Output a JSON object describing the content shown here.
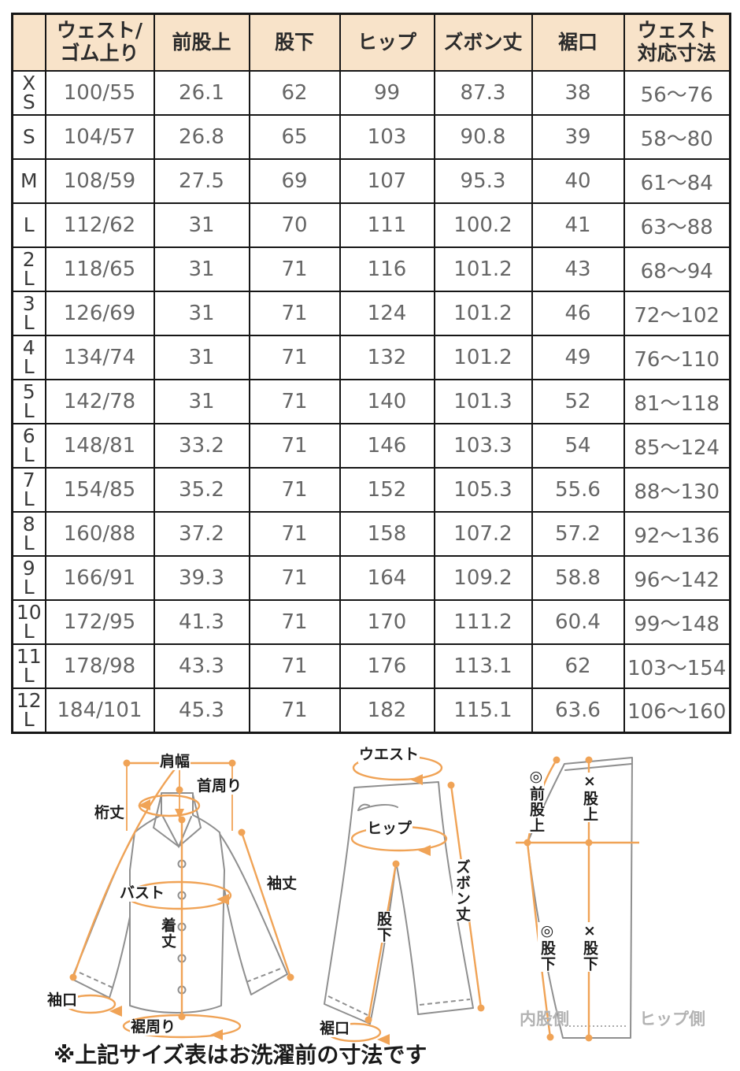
{
  "table": {
    "columns": [
      "",
      "ウェスト/\nゴム上り",
      "前股上",
      "股下",
      "ヒップ",
      "ズボン丈",
      "裾口",
      "ウェスト\n対応寸法"
    ],
    "rows": [
      {
        "size": "XS",
        "values": [
          "100/55",
          "26.1",
          "62",
          "99",
          "87.3",
          "38",
          "56～76"
        ]
      },
      {
        "size": "S",
        "values": [
          "104/57",
          "26.8",
          "65",
          "103",
          "90.8",
          "39",
          "58～80"
        ]
      },
      {
        "size": "M",
        "values": [
          "108/59",
          "27.5",
          "69",
          "107",
          "95.3",
          "40",
          "61～84"
        ]
      },
      {
        "size": "L",
        "values": [
          "112/62",
          "31",
          "70",
          "111",
          "100.2",
          "41",
          "63～88"
        ]
      },
      {
        "size": "2L",
        "values": [
          "118/65",
          "31",
          "71",
          "116",
          "101.2",
          "43",
          "68～94"
        ]
      },
      {
        "size": "3L",
        "values": [
          "126/69",
          "31",
          "71",
          "124",
          "101.2",
          "46",
          "72～102"
        ]
      },
      {
        "size": "4L",
        "values": [
          "134/74",
          "31",
          "71",
          "132",
          "101.2",
          "49",
          "76～110"
        ]
      },
      {
        "size": "5L",
        "values": [
          "142/78",
          "31",
          "71",
          "140",
          "101.3",
          "52",
          "81～118"
        ]
      },
      {
        "size": "6L",
        "values": [
          "148/81",
          "33.2",
          "71",
          "146",
          "103.3",
          "54",
          "85～124"
        ]
      },
      {
        "size": "7L",
        "values": [
          "154/85",
          "35.2",
          "71",
          "152",
          "105.3",
          "55.6",
          "88～130"
        ]
      },
      {
        "size": "8L",
        "values": [
          "160/88",
          "37.2",
          "71",
          "158",
          "107.2",
          "57.2",
          "92～136"
        ]
      },
      {
        "size": "9L",
        "values": [
          "166/91",
          "39.3",
          "71",
          "164",
          "109.2",
          "58.8",
          "96～142"
        ]
      },
      {
        "size": "10L",
        "values": [
          "172/95",
          "41.3",
          "71",
          "170",
          "111.2",
          "60.4",
          "99～148"
        ]
      },
      {
        "size": "11L",
        "values": [
          "178/98",
          "43.3",
          "71",
          "176",
          "113.1",
          "62",
          "103～154"
        ]
      },
      {
        "size": "12L",
        "values": [
          "184/101",
          "45.3",
          "71",
          "182",
          "115.1",
          "63.6",
          "106～160"
        ]
      }
    ]
  },
  "diagrams": {
    "shirt": {
      "labels": {
        "shoulder_width": "肩幅",
        "neck": "首周り",
        "yuki": "桁丈",
        "bust": "バスト",
        "sleeve_length": "袖丈",
        "body_length": "着丈",
        "cuff": "袖口",
        "hem_around": "裾周り"
      }
    },
    "pants_front": {
      "labels": {
        "waist": "ウエスト",
        "hip": "ヒップ",
        "inseam": "股下",
        "pants_length": "ズボン丈",
        "hem": "裾口"
      }
    },
    "pants_side": {
      "labels": {
        "front_rise": "◎前股上",
        "rise": "×股上",
        "inseam_inner": "◎股下",
        "inseam_outer": "×股下",
        "inner_side": "内股側",
        "hip_side": "ヒップ側"
      }
    }
  },
  "note": "※上記サイズ表はお洗濯前の寸法です",
  "colors": {
    "header_bg": "#f8e3c9",
    "accent_orange": "#f0a356",
    "outline_gray": "#8f8f8f",
    "border_black": "#161616",
    "value_text": "#666666",
    "side_label_gray": "#b3b3b3"
  }
}
